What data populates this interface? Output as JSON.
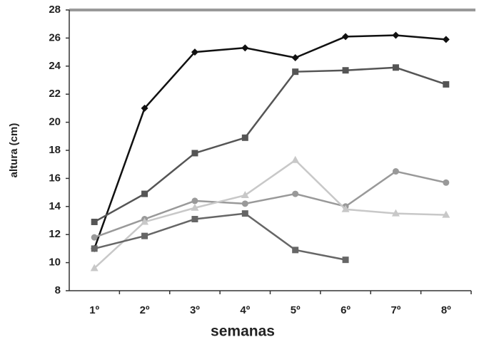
{
  "chart_data": {
    "type": "line",
    "x_label": "semanas",
    "y_label": "altura (cm)",
    "categories": [
      "1º",
      "2º",
      "3º",
      "4º",
      "5º",
      "6º",
      "7º",
      "8º"
    ],
    "series": [
      {
        "color": "#111111",
        "marker": "diamond",
        "values": [
          11,
          21,
          25,
          25.3,
          24.6,
          26.1,
          26.2,
          25.9
        ]
      },
      {
        "color": "#555555",
        "marker": "square",
        "values": [
          12.9,
          14.9,
          17.8,
          18.9,
          23.6,
          23.7,
          23.9,
          22.7
        ]
      },
      {
        "color": "#999999",
        "marker": "circle",
        "values": [
          11.8,
          13.1,
          14.4,
          14.2,
          14.9,
          14,
          16.5,
          15.7
        ]
      },
      {
        "color": "#c8c8c8",
        "marker": "triangle",
        "values": [
          9.6,
          12.9,
          13.9,
          14.8,
          17.3,
          13.8,
          13.5,
          13.4
        ]
      },
      {
        "color": "#666666",
        "marker": "square",
        "values": [
          11,
          11.9,
          13.1,
          13.5,
          10.9,
          10.2,
          null,
          null
        ]
      }
    ],
    "ylim": [
      8,
      28
    ],
    "yticks": [
      8,
      10,
      12,
      14,
      16,
      18,
      20,
      22,
      24,
      26,
      28
    ]
  }
}
